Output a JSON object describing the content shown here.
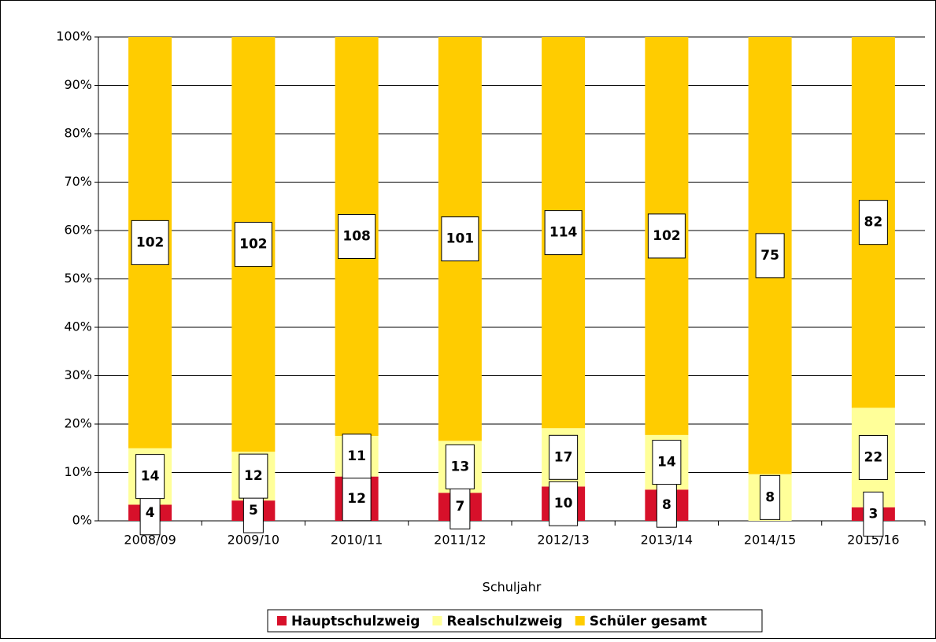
{
  "chart_data": {
    "type": "stacked_percent_bar",
    "x_label": "Schuljahr",
    "categories": [
      "2008/09",
      "2009/10",
      "2010/11",
      "2011/12",
      "2012/13",
      "2013/14",
      "2014/15",
      "2015/16"
    ],
    "series": [
      {
        "name": "Hauptschulzweig",
        "color": "#d7102a",
        "values": [
          4,
          5,
          12,
          7,
          10,
          8,
          null,
          3
        ]
      },
      {
        "name": "Realschulzweig",
        "color": "#ffff99",
        "values": [
          14,
          12,
          11,
          13,
          17,
          14,
          8,
          22
        ]
      },
      {
        "name": "Schüler gesamt",
        "color": "#ffcc00",
        "values": [
          102,
          102,
          108,
          101,
          114,
          102,
          75,
          82
        ]
      }
    ],
    "ylim": [
      0,
      100
    ],
    "yticks": [
      {
        "value": 0,
        "label": "0%"
      },
      {
        "value": 10,
        "label": "10%"
      },
      {
        "value": 20,
        "label": "20%"
      },
      {
        "value": 30,
        "label": "30%"
      },
      {
        "value": 40,
        "label": "40%"
      },
      {
        "value": 50,
        "label": "50%"
      },
      {
        "value": 60,
        "label": "60%"
      },
      {
        "value": 70,
        "label": "70%"
      },
      {
        "value": 80,
        "label": "80%"
      },
      {
        "value": 90,
        "label": "90%"
      },
      {
        "value": 100,
        "label": "100%"
      }
    ],
    "grid": true,
    "legend": "bottom"
  }
}
